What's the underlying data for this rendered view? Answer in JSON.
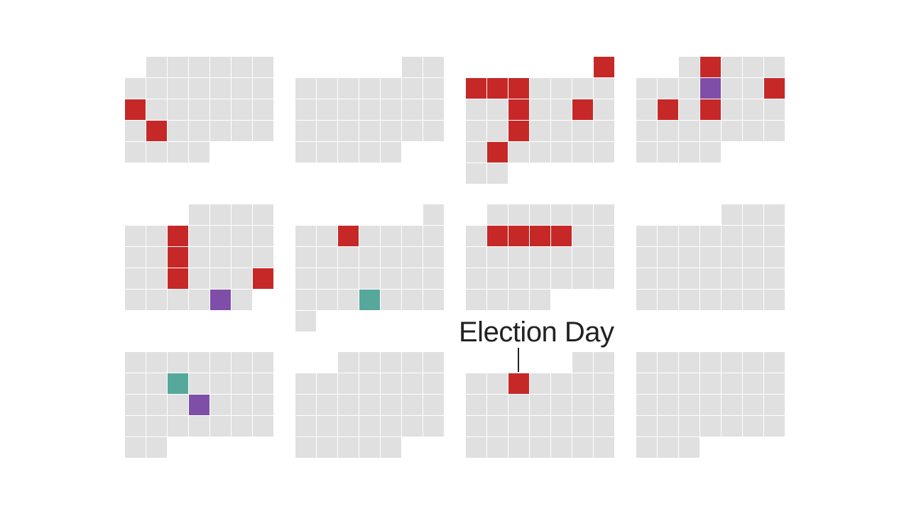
{
  "colors": {
    "empty": "#e0e0e0",
    "red": "#c62828",
    "purple": "#7e4ea8",
    "teal": "#55a89a"
  },
  "chart_data": {
    "type": "calendar-heatmap",
    "months": [
      {
        "start_weekday": 1,
        "days": 31,
        "marks": [
          {
            "day": 14,
            "color": "red"
          },
          {
            "day": 22,
            "color": "red"
          }
        ]
      },
      {
        "start_weekday": 5,
        "days": 28,
        "marks": []
      },
      {
        "start_weekday": 6,
        "days": 31,
        "marks": [
          {
            "day": 1,
            "color": "red"
          },
          {
            "day": 2,
            "color": "red"
          },
          {
            "day": 3,
            "color": "red"
          },
          {
            "day": 4,
            "color": "red"
          },
          {
            "day": 11,
            "color": "red"
          },
          {
            "day": 14,
            "color": "red"
          },
          {
            "day": 18,
            "color": "red"
          },
          {
            "day": 24,
            "color": "red"
          }
        ]
      },
      {
        "start_weekday": 2,
        "days": 30,
        "marks": [
          {
            "day": 2,
            "color": "red"
          },
          {
            "day": 9,
            "color": "purple"
          },
          {
            "day": 12,
            "color": "red"
          },
          {
            "day": 14,
            "color": "red"
          },
          {
            "day": 16,
            "color": "red"
          }
        ]
      },
      {
        "start_weekday": 3,
        "days": 31,
        "marks": [
          {
            "day": 7,
            "color": "red"
          },
          {
            "day": 14,
            "color": "red"
          },
          {
            "day": 21,
            "color": "red"
          },
          {
            "day": 25,
            "color": "red"
          },
          {
            "day": 30,
            "color": "purple"
          }
        ]
      },
      {
        "start_weekday": 6,
        "days": 30,
        "marks": [
          {
            "day": 4,
            "color": "red"
          },
          {
            "day": 26,
            "color": "teal"
          }
        ]
      },
      {
        "start_weekday": 1,
        "days": 31,
        "marks": [
          {
            "day": 8,
            "color": "red"
          },
          {
            "day": 9,
            "color": "red"
          },
          {
            "day": 10,
            "color": "red"
          },
          {
            "day": 11,
            "color": "red"
          }
        ]
      },
      {
        "start_weekday": 4,
        "days": 31,
        "marks": []
      },
      {
        "start_weekday": 0,
        "days": 30,
        "marks": [
          {
            "day": 10,
            "color": "teal"
          },
          {
            "day": 18,
            "color": "purple"
          }
        ]
      },
      {
        "start_weekday": 2,
        "days": 31,
        "marks": []
      },
      {
        "start_weekday": 5,
        "days": 30,
        "marks": [
          {
            "day": 5,
            "color": "red"
          }
        ]
      },
      {
        "start_weekday": 0,
        "days": 31,
        "marks": []
      }
    ],
    "annotation": {
      "label": "Election Day",
      "month_index": 10,
      "day": 5
    }
  }
}
